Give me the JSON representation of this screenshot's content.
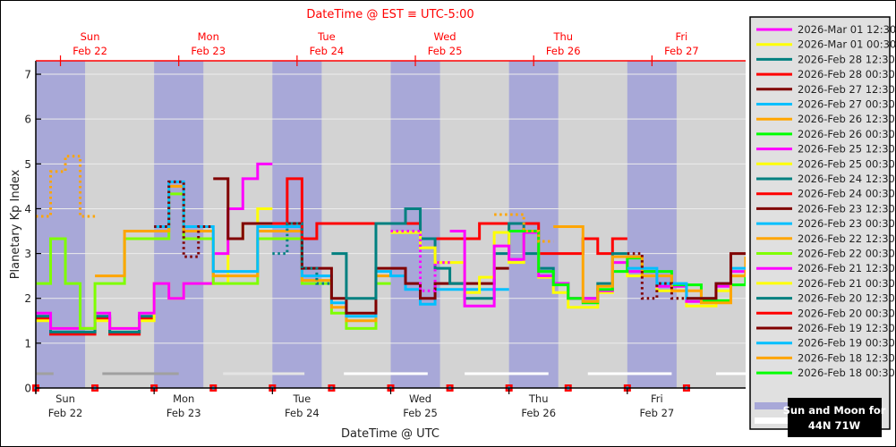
{
  "chart_data": {
    "type": "line",
    "step": true,
    "top_title": "DateTime @ EST ≡ UTC-5:00",
    "xlabel": "DateTime @ UTC",
    "ylabel": "Planetary Kp Index",
    "x_start": "2026-02-22 00:00",
    "x_end": "2026-02-28 00:00",
    "ylim": [
      0,
      7.3
    ],
    "y_ticks": [
      "0",
      "1",
      "2",
      "3",
      "4",
      "5",
      "6",
      "7"
    ],
    "grid": true,
    "x_ticks_utc": [
      {
        "day": "Sun",
        "date": "Feb 22"
      },
      {
        "day": "Mon",
        "date": "Feb 23"
      },
      {
        "day": "Tue",
        "date": "Feb 24"
      },
      {
        "day": "Wed",
        "date": "Feb 25"
      },
      {
        "day": "Thu",
        "date": "Feb 26"
      },
      {
        "day": "Fri",
        "date": "Feb 27"
      }
    ],
    "x_ticks_est": [
      {
        "day": "Sun",
        "date": "Feb 22"
      },
      {
        "day": "Mon",
        "date": "Feb 23"
      },
      {
        "day": "Tue",
        "date": "Feb 24"
      },
      {
        "day": "Wed",
        "date": "Feb 25"
      },
      {
        "day": "Thu",
        "date": "Feb 26"
      },
      {
        "day": "Fri",
        "date": "Feb 27"
      }
    ],
    "night_hours_utc": [
      [
        0,
        10
      ],
      [
        24,
        34
      ],
      [
        48,
        58
      ],
      [
        72,
        82
      ],
      [
        96,
        106
      ],
      [
        120,
        130
      ]
    ],
    "moon_up_hours_utc": [
      {
        "from": 0,
        "to": 3.6,
        "tone": "dim"
      },
      {
        "from": 13.5,
        "to": 29,
        "tone": "dim"
      },
      {
        "from": 38,
        "to": 54.5,
        "tone": "medium"
      },
      {
        "from": 62.5,
        "to": 79.5,
        "tone": "bright"
      },
      {
        "from": 87,
        "to": 104,
        "tone": "bright"
      },
      {
        "from": 112,
        "to": 129,
        "tone": "bright"
      },
      {
        "from": 138,
        "to": 144,
        "tone": "bright"
      }
    ],
    "marker_interval_hours": 12,
    "colors": {
      "night": "#a8a8d8",
      "day": "#d3d3d3",
      "moon_dim": "#a0a0a0",
      "moon_medium": "#e4e4e4",
      "moon_bright": "#ffffff",
      "top_axis": "#ff0000",
      "marker": "#ff0000",
      "marker_dot": "#00bfff"
    },
    "series": [
      {
        "name": "2026-Mar 01 12:30",
        "color": "#ff00ff"
      },
      {
        "name": "2026-Mar 01 00:30",
        "color": "#ffff00"
      },
      {
        "name": "2026-Feb 28 12:30",
        "color": "#008080"
      },
      {
        "name": "2026-Feb 28 00:30",
        "color": "#ff0000"
      },
      {
        "name": "2026-Feb 27 12:30",
        "color": "#800000",
        "observed": {
          "start": "2026-02-27 00:00",
          "values": [
            3.0,
            2.0,
            2.33,
            2.0
          ]
        },
        "forecast": {
          "start": "2026-02-27 12:00",
          "values": [
            2.0,
            2.0,
            2.33,
            3.0
          ]
        }
      },
      {
        "name": "2026-Feb 27 00:30",
        "color": "#00bfff",
        "forecast": {
          "start": "2026-02-27 00:00",
          "values": [
            2.67,
            2.67,
            2.33,
            2.33,
            2.0,
            2.0,
            2.33,
            2.67
          ]
        }
      },
      {
        "name": "2026-Feb 26 12:30",
        "color": "#ffa500",
        "observed": {
          "start": "2026-02-25 21:00",
          "values": [
            3.87,
            3.87,
            3.5,
            3.27
          ]
        },
        "forecast": {
          "start": "2026-02-26 09:00",
          "values": [
            3.6,
            3.6,
            1.93,
            2.27,
            2.93,
            2.93,
            2.5,
            2.5,
            2.17,
            2.17,
            1.9,
            1.9,
            2.5,
            2.9
          ]
        }
      },
      {
        "name": "2026-Feb 26 00:30",
        "color": "#00ff00",
        "forecast": {
          "start": "2026-02-26 00:00",
          "values": [
            3.5,
            3.5,
            2.6,
            2.3,
            2.0,
            1.9,
            2.2,
            2.6,
            2.9,
            2.6,
            2.6,
            2.3,
            2.3,
            1.95,
            1.95,
            2.3,
            2.6
          ]
        }
      },
      {
        "name": "2026-Feb 25 12:30",
        "color": "#ff00ff",
        "observed": {
          "start": "2026-02-25 00:00",
          "values": [
            3.5,
            3.5,
            2.17,
            2.8
          ]
        },
        "forecast": {
          "start": "2026-02-25 12:00",
          "values": [
            3.5,
            1.83,
            1.83,
            3.17,
            2.87,
            3.47,
            2.5,
            2.33,
            2.0,
            2.0,
            2.17,
            2.8,
            2.6,
            2.6,
            2.27,
            2.27,
            1.93,
            1.93,
            2.27,
            2.6
          ]
        }
      },
      {
        "name": "2026-Feb 25 00:30",
        "color": "#ffff00",
        "forecast": {
          "start": "2026-02-25 00:00",
          "values": [
            3.47,
            3.47,
            3.13,
            2.8,
            2.8,
            2.13,
            2.47,
            3.47,
            2.8,
            3.47,
            2.47,
            2.13,
            1.8,
            1.8,
            2.13,
            2.8,
            2.5,
            2.5,
            2.17,
            2.17,
            1.83,
            1.83,
            2.17,
            2.5
          ]
        }
      },
      {
        "name": "2026-Feb 24 12:30",
        "color": "#008080",
        "observed": {
          "start": "2026-02-24 00:00",
          "values": [
            3.0,
            3.67,
            2.67,
            2.33
          ]
        },
        "forecast": {
          "start": "2026-02-24 12:00",
          "values": [
            3.0,
            2.0,
            2.0,
            3.67,
            3.67,
            4.0,
            3.33,
            2.67,
            2.33,
            2.0,
            2.0,
            3.0,
            3.67,
            3.0,
            2.67,
            2.33,
            2.0,
            2.0,
            2.33,
            3.0
          ]
        }
      },
      {
        "name": "2026-Feb 24 00:30",
        "color": "#ff0000",
        "forecast": {
          "start": "2026-02-24 00:00",
          "values": [
            3.67,
            4.67,
            3.33,
            3.67,
            3.67,
            3.67,
            3.67,
            3.67,
            3.67,
            3.67,
            3.33,
            3.33,
            3.33,
            3.33,
            3.67,
            3.67,
            3.67,
            3.67,
            3.0,
            3.0,
            3.0,
            3.33,
            3.0,
            3.33
          ]
        }
      },
      {
        "name": "2026-Feb 23 12:30",
        "color": "#800000",
        "observed": {
          "start": "2026-02-23 00:00",
          "values": [
            3.6,
            4.6,
            2.93,
            3.6
          ]
        },
        "forecast": {
          "start": "2026-02-23 12:00",
          "values": [
            4.67,
            3.33,
            3.67,
            3.67,
            3.67,
            3.67,
            2.67,
            2.67,
            2.0,
            1.67,
            1.67,
            2.67,
            2.67,
            2.33,
            2.0,
            2.33,
            2.33,
            2.33,
            2.33,
            2.67
          ]
        }
      },
      {
        "name": "2026-Feb 23 00:30",
        "color": "#00bfff",
        "forecast": {
          "start": "2026-02-23 00:00",
          "values": [
            3.6,
            4.6,
            3.6,
            3.6,
            2.6,
            2.6,
            2.6,
            3.6,
            3.6,
            3.6,
            2.5,
            2.5,
            1.9,
            1.6,
            1.6,
            2.6,
            2.5,
            2.2,
            1.87,
            2.2,
            2.2,
            2.2,
            2.2,
            2.2
          ]
        }
      },
      {
        "name": "2026-Feb 22 12:30",
        "color": "#ffa500",
        "observed": {
          "start": "2026-02-22 00:00",
          "values": [
            3.83,
            4.83,
            5.17,
            3.83
          ]
        },
        "forecast": {
          "start": "2026-02-22 12:00",
          "values": [
            2.5,
            2.5,
            3.5,
            3.5,
            3.5,
            4.5,
            3.5,
            3.5,
            2.5,
            2.5,
            2.5,
            3.5,
            3.5,
            3.5,
            2.4,
            2.4,
            1.8,
            1.5,
            1.5,
            2.5
          ]
        }
      },
      {
        "name": "2026-Feb 22 00:30",
        "color": "#7fff00",
        "forecast": {
          "start": "2026-02-22 00:00",
          "values": [
            2.33,
            3.33,
            2.33,
            1.33,
            2.33,
            2.33,
            3.33,
            3.33,
            3.33,
            4.33,
            3.33,
            3.33,
            2.33,
            2.33,
            2.33,
            3.33,
            3.33,
            3.33,
            2.33,
            2.33,
            1.67,
            1.33,
            1.33,
            2.33
          ]
        }
      },
      {
        "name": "2026-Feb 21 12:30",
        "color": "#ff00ff",
        "forecast": {
          "start": "2026-02-22 00:00",
          "values": [
            1.67,
            1.33,
            1.33,
            1.33,
            1.67,
            1.33,
            1.33,
            1.67,
            2.33,
            2.0,
            2.33,
            2.33,
            3.0,
            4.0,
            4.67,
            5.0
          ]
        }
      },
      {
        "name": "2026-Feb 21 00:30",
        "color": "#ffff00",
        "forecast": {
          "start": "2026-02-22 00:00",
          "values": [
            1.5,
            1.33,
            1.33,
            1.33,
            1.5,
            1.33,
            1.33,
            1.5,
            2.33,
            2.0,
            2.33,
            2.33,
            2.33,
            3.33,
            3.67,
            4.0
          ]
        }
      },
      {
        "name": "2026-Feb 20 12:30",
        "color": "#008080",
        "forecast": {
          "start": "2026-02-22 00:00",
          "values": [
            1.6,
            1.25,
            1.25,
            1.25,
            1.6,
            1.25,
            1.25,
            1.6
          ]
        }
      },
      {
        "name": "2026-Feb 20 00:30",
        "color": "#ff0000",
        "forecast": {
          "start": "2026-02-22 00:00",
          "values": [
            1.55,
            1.2,
            1.2,
            1.2,
            1.55,
            1.2,
            1.2,
            1.55
          ]
        }
      },
      {
        "name": "2026-Feb 19 12:30",
        "color": "#800000"
      },
      {
        "name": "2026-Feb 19 00:30",
        "color": "#00bfff"
      },
      {
        "name": "2026-Feb 18 12:30",
        "color": "#ffa500"
      },
      {
        "name": "2026-Feb 18 00:30",
        "color": "#00ff00"
      }
    ],
    "sun_moon_label": {
      "line1": "Sun and Moon for",
      "line2": "44N 71W"
    }
  }
}
